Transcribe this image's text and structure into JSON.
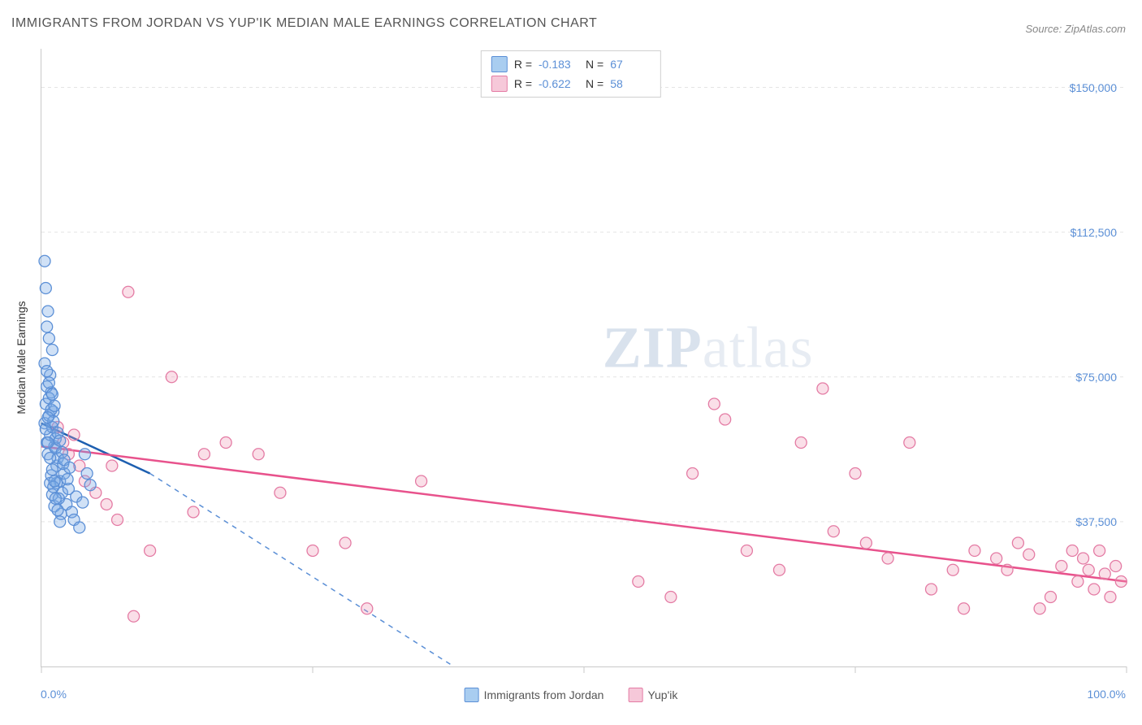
{
  "title": "IMMIGRANTS FROM JORDAN VS YUP'IK MEDIAN MALE EARNINGS CORRELATION CHART",
  "source": "Source: ZipAtlas.com",
  "watermark_bold": "ZIP",
  "watermark_light": "atlas",
  "y_axis_title": "Median Male Earnings",
  "x_label_min": "0.0%",
  "x_label_max": "100.0%",
  "chart": {
    "type": "scatter",
    "xlim": [
      0,
      100
    ],
    "ylim": [
      0,
      160000
    ],
    "y_ticks": [
      37500,
      75000,
      112500,
      150000
    ],
    "y_tick_labels": [
      "$37,500",
      "$75,000",
      "$112,500",
      "$150,000"
    ],
    "x_ticks": [
      0,
      25,
      50,
      75,
      100
    ],
    "grid_color": "#e4e4e4",
    "axis_color": "#c9c9c9",
    "label_color": "#5b8fd6",
    "background_color": "#ffffff",
    "marker_radius": 7,
    "marker_stroke_width": 1.3,
    "series": [
      {
        "name": "Immigrants from Jordan",
        "fill": "rgba(120,170,230,0.35)",
        "stroke": "#5b8fd6",
        "swatch_fill": "#a9cdf0",
        "swatch_border": "#5b8fd6",
        "R": "-0.183",
        "N": "67",
        "trend": {
          "x1": 0,
          "y1": 63000,
          "x2": 10,
          "y2": 50000,
          "extend_x": 38,
          "extend_y": 0,
          "solid_color": "#1d5fb0",
          "dash_color": "#5b8fd6"
        },
        "points": [
          [
            0.3,
            63000
          ],
          [
            0.5,
            58000
          ],
          [
            0.7,
            65000
          ],
          [
            0.8,
            60000
          ],
          [
            0.6,
            55000
          ],
          [
            1.0,
            62000
          ],
          [
            1.2,
            57000
          ],
          [
            1.4,
            52000
          ],
          [
            0.4,
            68000
          ],
          [
            0.9,
            71000
          ],
          [
            1.1,
            66000
          ],
          [
            1.3,
            59000
          ],
          [
            1.5,
            54000
          ],
          [
            1.7,
            48000
          ],
          [
            1.9,
            45000
          ],
          [
            2.1,
            50000
          ],
          [
            0.5,
            88000
          ],
          [
            0.7,
            85000
          ],
          [
            1.0,
            82000
          ],
          [
            0.3,
            105000
          ],
          [
            0.4,
            98000
          ],
          [
            0.6,
            92000
          ],
          [
            2.3,
            42000
          ],
          [
            2.5,
            46000
          ],
          [
            2.8,
            40000
          ],
          [
            3.0,
            38000
          ],
          [
            3.2,
            44000
          ],
          [
            3.5,
            36000
          ],
          [
            4.0,
            55000
          ],
          [
            4.2,
            50000
          ],
          [
            0.8,
            47500
          ],
          [
            1.0,
            44500
          ],
          [
            1.2,
            41500
          ],
          [
            1.4,
            47500
          ],
          [
            1.6,
            43500
          ],
          [
            1.8,
            39500
          ],
          [
            2.0,
            52500
          ],
          [
            0.5,
            72500
          ],
          [
            0.7,
            69500
          ],
          [
            0.9,
            66500
          ],
          [
            1.1,
            63500
          ],
          [
            0.4,
            61500
          ],
          [
            0.6,
            64500
          ],
          [
            1.3,
            56500
          ],
          [
            1.5,
            60500
          ],
          [
            1.7,
            58500
          ],
          [
            1.9,
            55500
          ],
          [
            2.1,
            53500
          ],
          [
            2.4,
            48500
          ],
          [
            2.6,
            51500
          ],
          [
            1.0,
            70500
          ],
          [
            1.2,
            67500
          ],
          [
            0.8,
            75500
          ],
          [
            0.3,
            78500
          ],
          [
            0.5,
            76500
          ],
          [
            0.7,
            73500
          ],
          [
            0.9,
            49500
          ],
          [
            1.1,
            46500
          ],
          [
            1.3,
            43500
          ],
          [
            1.5,
            40500
          ],
          [
            1.7,
            37500
          ],
          [
            3.8,
            42500
          ],
          [
            4.5,
            47000
          ],
          [
            0.6,
            58000
          ],
          [
            0.8,
            54000
          ],
          [
            1.0,
            51000
          ],
          [
            1.2,
            48000
          ]
        ]
      },
      {
        "name": "Yup'ik",
        "fill": "rgba(240,150,180,0.3)",
        "stroke": "#e47ba4",
        "swatch_fill": "#f6c8d9",
        "swatch_border": "#e47ba4",
        "R": "-0.622",
        "N": "58",
        "trend": {
          "x1": 0,
          "y1": 57000,
          "x2": 100,
          "y2": 22000,
          "solid_color": "#e8528c"
        },
        "points": [
          [
            1.5,
            62000
          ],
          [
            2.0,
            58000
          ],
          [
            2.5,
            55000
          ],
          [
            3.0,
            60000
          ],
          [
            3.5,
            52000
          ],
          [
            4.0,
            48000
          ],
          [
            5.0,
            45000
          ],
          [
            6.0,
            42000
          ],
          [
            7.0,
            38000
          ],
          [
            8.0,
            97000
          ],
          [
            10.0,
            30000
          ],
          [
            12.0,
            75000
          ],
          [
            14.0,
            40000
          ],
          [
            15.0,
            55000
          ],
          [
            17.0,
            58000
          ],
          [
            20.0,
            55000
          ],
          [
            22.0,
            45000
          ],
          [
            25.0,
            30000
          ],
          [
            28.0,
            32000
          ],
          [
            30.0,
            15000
          ],
          [
            35.0,
            48000
          ],
          [
            8.5,
            13000
          ],
          [
            55.0,
            22000
          ],
          [
            58.0,
            18000
          ],
          [
            60.0,
            50000
          ],
          [
            62.0,
            68000
          ],
          [
            63.0,
            64000
          ],
          [
            65.0,
            30000
          ],
          [
            68.0,
            25000
          ],
          [
            70.0,
            58000
          ],
          [
            72.0,
            72000
          ],
          [
            73.0,
            35000
          ],
          [
            75.0,
            50000
          ],
          [
            76.0,
            32000
          ],
          [
            78.0,
            28000
          ],
          [
            80.0,
            58000
          ],
          [
            82.0,
            20000
          ],
          [
            84.0,
            25000
          ],
          [
            85.0,
            15000
          ],
          [
            86.0,
            30000
          ],
          [
            88.0,
            28000
          ],
          [
            89.0,
            25000
          ],
          [
            90.0,
            32000
          ],
          [
            91.0,
            29000
          ],
          [
            92.0,
            15000
          ],
          [
            93.0,
            18000
          ],
          [
            94.0,
            26000
          ],
          [
            95.0,
            30000
          ],
          [
            95.5,
            22000
          ],
          [
            96.0,
            28000
          ],
          [
            96.5,
            25000
          ],
          [
            97.0,
            20000
          ],
          [
            97.5,
            30000
          ],
          [
            98.0,
            24000
          ],
          [
            98.5,
            18000
          ],
          [
            99.0,
            26000
          ],
          [
            99.5,
            22000
          ],
          [
            6.5,
            52000
          ]
        ]
      }
    ]
  },
  "legend_labels": [
    "Immigrants from Jordan",
    "Yup'ik"
  ],
  "stats_labels": {
    "r": "R  =",
    "n": "N  ="
  }
}
